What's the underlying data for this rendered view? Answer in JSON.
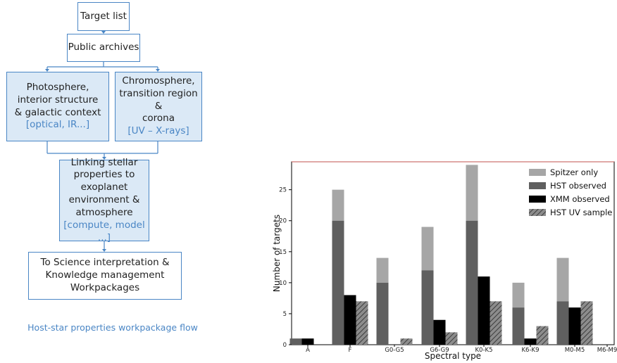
{
  "flow": {
    "target_list": "Target list",
    "public_archives": "Public archives",
    "photosphere": {
      "lines": [
        "Photosphere,",
        "interior structure",
        "& galactic context"
      ],
      "tag": "[optical, IR...]"
    },
    "chromosphere": {
      "lines": [
        "Chromosphere,",
        "transition region &",
        "corona"
      ],
      "tag": "[UV – X-rays]"
    },
    "linking": {
      "lines": [
        "Linking stellar",
        "properties to",
        "exoplanet",
        "environment &",
        "atmosphere"
      ],
      "tag": "[compute, model ...]"
    },
    "science": {
      "lines": [
        "To Science interpretation &",
        "Knowledge management",
        "Workpackages"
      ]
    },
    "caption": "Host-star properties workpackage flow"
  },
  "colors": {
    "accent": "#4a86c5",
    "box_fill": "#dbe9f6"
  },
  "chart_data": {
    "type": "bar",
    "xlabel": "Spectral type",
    "ylabel": "Number of targets",
    "categories": [
      "A",
      "F",
      "G0-G5",
      "G6-G9",
      "K0-K5",
      "K6-K9",
      "M0-M5",
      "M6-M9"
    ],
    "ylim": [
      0,
      30
    ],
    "yticks": [
      0,
      5,
      10,
      15,
      20,
      25
    ],
    "series": [
      {
        "name": "Spitzer only",
        "color": "#a6a6a6",
        "values": [
          0,
          5,
          4,
          7,
          9,
          4,
          7,
          0
        ]
      },
      {
        "name": "HST observed",
        "color": "#5f5f5f",
        "values": [
          1,
          20,
          10,
          12,
          20,
          6,
          7,
          0
        ]
      },
      {
        "name": "XMM observed",
        "color": "#000000",
        "values": [
          1,
          8,
          0,
          4,
          11,
          1,
          6,
          0
        ]
      },
      {
        "name": "HST UV sample",
        "color": "hatched-gray",
        "values": [
          0,
          7,
          1,
          2,
          7,
          3,
          7,
          0
        ]
      }
    ],
    "legend_position": "top-right",
    "grid": false
  }
}
